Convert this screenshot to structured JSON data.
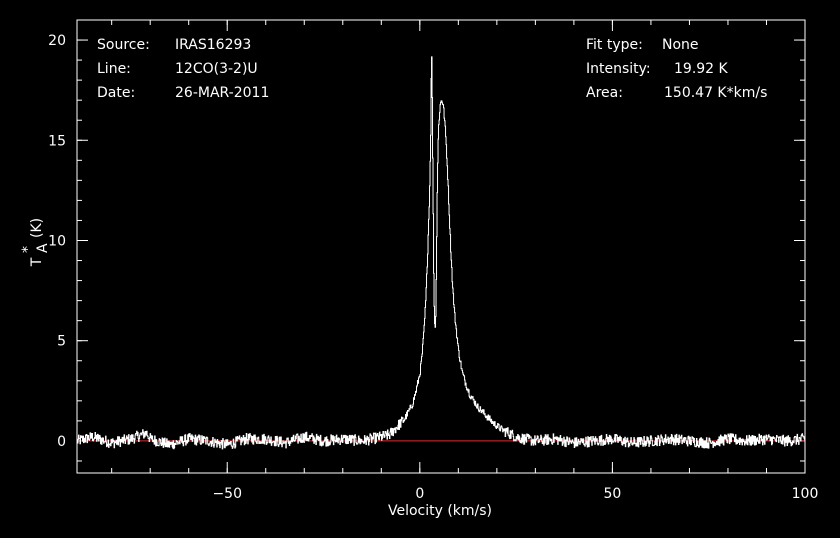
{
  "header_left": [
    {
      "label": "Source:",
      "value": "IRAS16293"
    },
    {
      "label": "Line:",
      "value": "12CO(3-2)U"
    },
    {
      "label": "Date:",
      "value": "26-MAR-2011"
    }
  ],
  "header_right": [
    {
      "label": "Fit type:",
      "value": "None"
    },
    {
      "label": "Intensity:",
      "value": "19.92 K"
    },
    {
      "label": "Area:",
      "value": "150.47 K*km/s"
    }
  ],
  "colors": {
    "background": "#000000",
    "axes": "#ffffff",
    "spectrum": "#ffffff",
    "baseline": "#e0282c"
  },
  "chart_data": {
    "type": "line",
    "title": "",
    "xlabel": "Velocity (km/s)",
    "ylabel_main": "T",
    "ylabel_sub": "A",
    "ylabel_sup": "*",
    "ylabel_unit": "(K)",
    "xlim": [
      -89,
      100
    ],
    "ylim": [
      -1.6,
      21
    ],
    "xticks": [
      {
        "value": -50,
        "label": "−50"
      },
      {
        "value": 0,
        "label": "0"
      },
      {
        "value": 50,
        "label": "50"
      },
      {
        "value": 100,
        "label": "100"
      }
    ],
    "yticks": [
      {
        "value": 0,
        "label": "0"
      },
      {
        "value": 5,
        "label": "5"
      },
      {
        "value": 10,
        "label": "10"
      },
      {
        "value": 15,
        "label": "15"
      },
      {
        "value": 20,
        "label": "20"
      }
    ],
    "x_minor_step": 10,
    "y_minor_step": 1,
    "baseline": {
      "y": 0,
      "x": [
        -89,
        100
      ]
    },
    "series": [
      {
        "x": [
          -89,
          -85,
          -80,
          -75,
          -71,
          -70,
          -65,
          -60,
          -55,
          -50,
          -45,
          -40,
          -35,
          -30,
          -25,
          -20,
          -15,
          -10,
          -8,
          -6,
          -4,
          -2,
          -1,
          0,
          0.5,
          1,
          1.5,
          2,
          2.5,
          2.8,
          3.0,
          3.2,
          3.4,
          3.6,
          3.9,
          4.1,
          4.3,
          4.5,
          4.8,
          5.2,
          5.6,
          6.0,
          6.4,
          6.8,
          7.2,
          7.6,
          8.0,
          8.5,
          9,
          10,
          11,
          12,
          13,
          15,
          17,
          19,
          21,
          23,
          25,
          27,
          30,
          35,
          40,
          45,
          50,
          55,
          60,
          65,
          70,
          75,
          80,
          85,
          90,
          95,
          100
        ],
        "values": [
          0.0,
          0.2,
          -0.1,
          0.1,
          0.4,
          0.1,
          -0.2,
          0.1,
          0.0,
          -0.2,
          0.1,
          0.1,
          -0.1,
          0.2,
          0.0,
          0.1,
          0.0,
          0.2,
          0.3,
          0.7,
          1.1,
          1.8,
          2.5,
          3.4,
          4.2,
          5.4,
          7.0,
          9.5,
          12.5,
          15.6,
          19.92,
          16.5,
          12.0,
          7.5,
          5.3,
          6.5,
          9.5,
          13.0,
          15.6,
          16.7,
          17.05,
          16.8,
          16.0,
          14.8,
          13.2,
          11.3,
          9.5,
          7.6,
          6.3,
          4.5,
          3.4,
          2.8,
          2.3,
          1.7,
          1.3,
          0.9,
          0.6,
          0.4,
          0.2,
          0.1,
          0.0,
          0.1,
          -0.1,
          0.0,
          0.1,
          -0.1,
          0.0,
          0.1,
          0.0,
          -0.1,
          0.1,
          0.0,
          0.1,
          0.0,
          0.1
        ]
      }
    ]
  }
}
